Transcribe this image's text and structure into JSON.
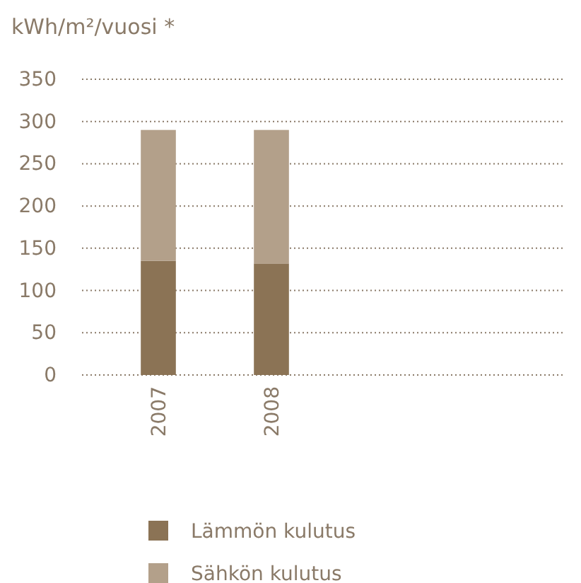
{
  "chart_data": {
    "type": "bar",
    "ylabel": "kWh/m²/vuosi *",
    "categories": [
      "2007",
      "2008"
    ],
    "stacked": true,
    "series": [
      {
        "name": "Lämmön kulutus",
        "color": "#8b7355",
        "values": [
          135,
          132
        ]
      },
      {
        "name": "Sähkön kulutus",
        "color": "#b3a08a",
        "values": [
          155,
          158
        ]
      }
    ],
    "ylim": [
      0,
      350
    ],
    "yticks": [
      0,
      50,
      100,
      150,
      200,
      250,
      300,
      350
    ],
    "grid": "y",
    "legend": "bottom"
  }
}
